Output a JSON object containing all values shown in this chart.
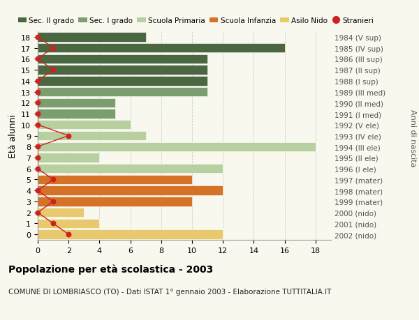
{
  "ages": [
    18,
    17,
    16,
    15,
    14,
    13,
    12,
    11,
    10,
    9,
    8,
    7,
    6,
    5,
    4,
    3,
    2,
    1,
    0
  ],
  "years": [
    "1984 (V sup)",
    "1985 (IV sup)",
    "1986 (III sup)",
    "1987 (II sup)",
    "1988 (I sup)",
    "1989 (III med)",
    "1990 (II med)",
    "1991 (I med)",
    "1992 (V ele)",
    "1993 (IV ele)",
    "1994 (III ele)",
    "1995 (II ele)",
    "1996 (I ele)",
    "1997 (mater)",
    "1998 (mater)",
    "1999 (mater)",
    "2000 (nido)",
    "2001 (nido)",
    "2002 (nido)"
  ],
  "bar_values": [
    7,
    16,
    11,
    11,
    11,
    11,
    5,
    5,
    6,
    7,
    18,
    4,
    12,
    10,
    12,
    10,
    3,
    4,
    12
  ],
  "bar_colors": [
    "#4a6741",
    "#4a6741",
    "#4a6741",
    "#4a6741",
    "#4a6741",
    "#7a9e6e",
    "#7a9e6e",
    "#7a9e6e",
    "#b8cfa0",
    "#b8cfa0",
    "#b8cfa0",
    "#b8cfa0",
    "#b8cfa0",
    "#d47328",
    "#d47328",
    "#d47328",
    "#e8c96e",
    "#e8c96e",
    "#e8c96e"
  ],
  "stranieri_x": [
    0,
    1,
    0,
    1,
    0,
    0,
    0,
    0,
    0,
    2,
    0,
    0,
    0,
    1,
    0,
    1,
    0,
    1,
    2
  ],
  "legend_labels": [
    "Sec. II grado",
    "Sec. I grado",
    "Scuola Primaria",
    "Scuola Infanzia",
    "Asilo Nido",
    "Stranieri"
  ],
  "legend_colors": [
    "#4a6741",
    "#7a9e6e",
    "#b8cfa0",
    "#d47328",
    "#e8c96e",
    "#cc2222"
  ],
  "ylabel": "Età alunni",
  "right_ylabel": "Anni di nascita",
  "title_bold": "Popolazione per età scolastica - 2003",
  "subtitle": "COMUNE DI LOMBRIASCO (TO) - Dati ISTAT 1° gennaio 2003 - Elaborazione TUTTITALIA.IT",
  "xlim": [
    0,
    19
  ],
  "bg_color": "#f8f8ee",
  "grid_color": "#cccccc",
  "stranieri_dot_color": "#cc2222",
  "stranieri_line_color": "#cc2222"
}
